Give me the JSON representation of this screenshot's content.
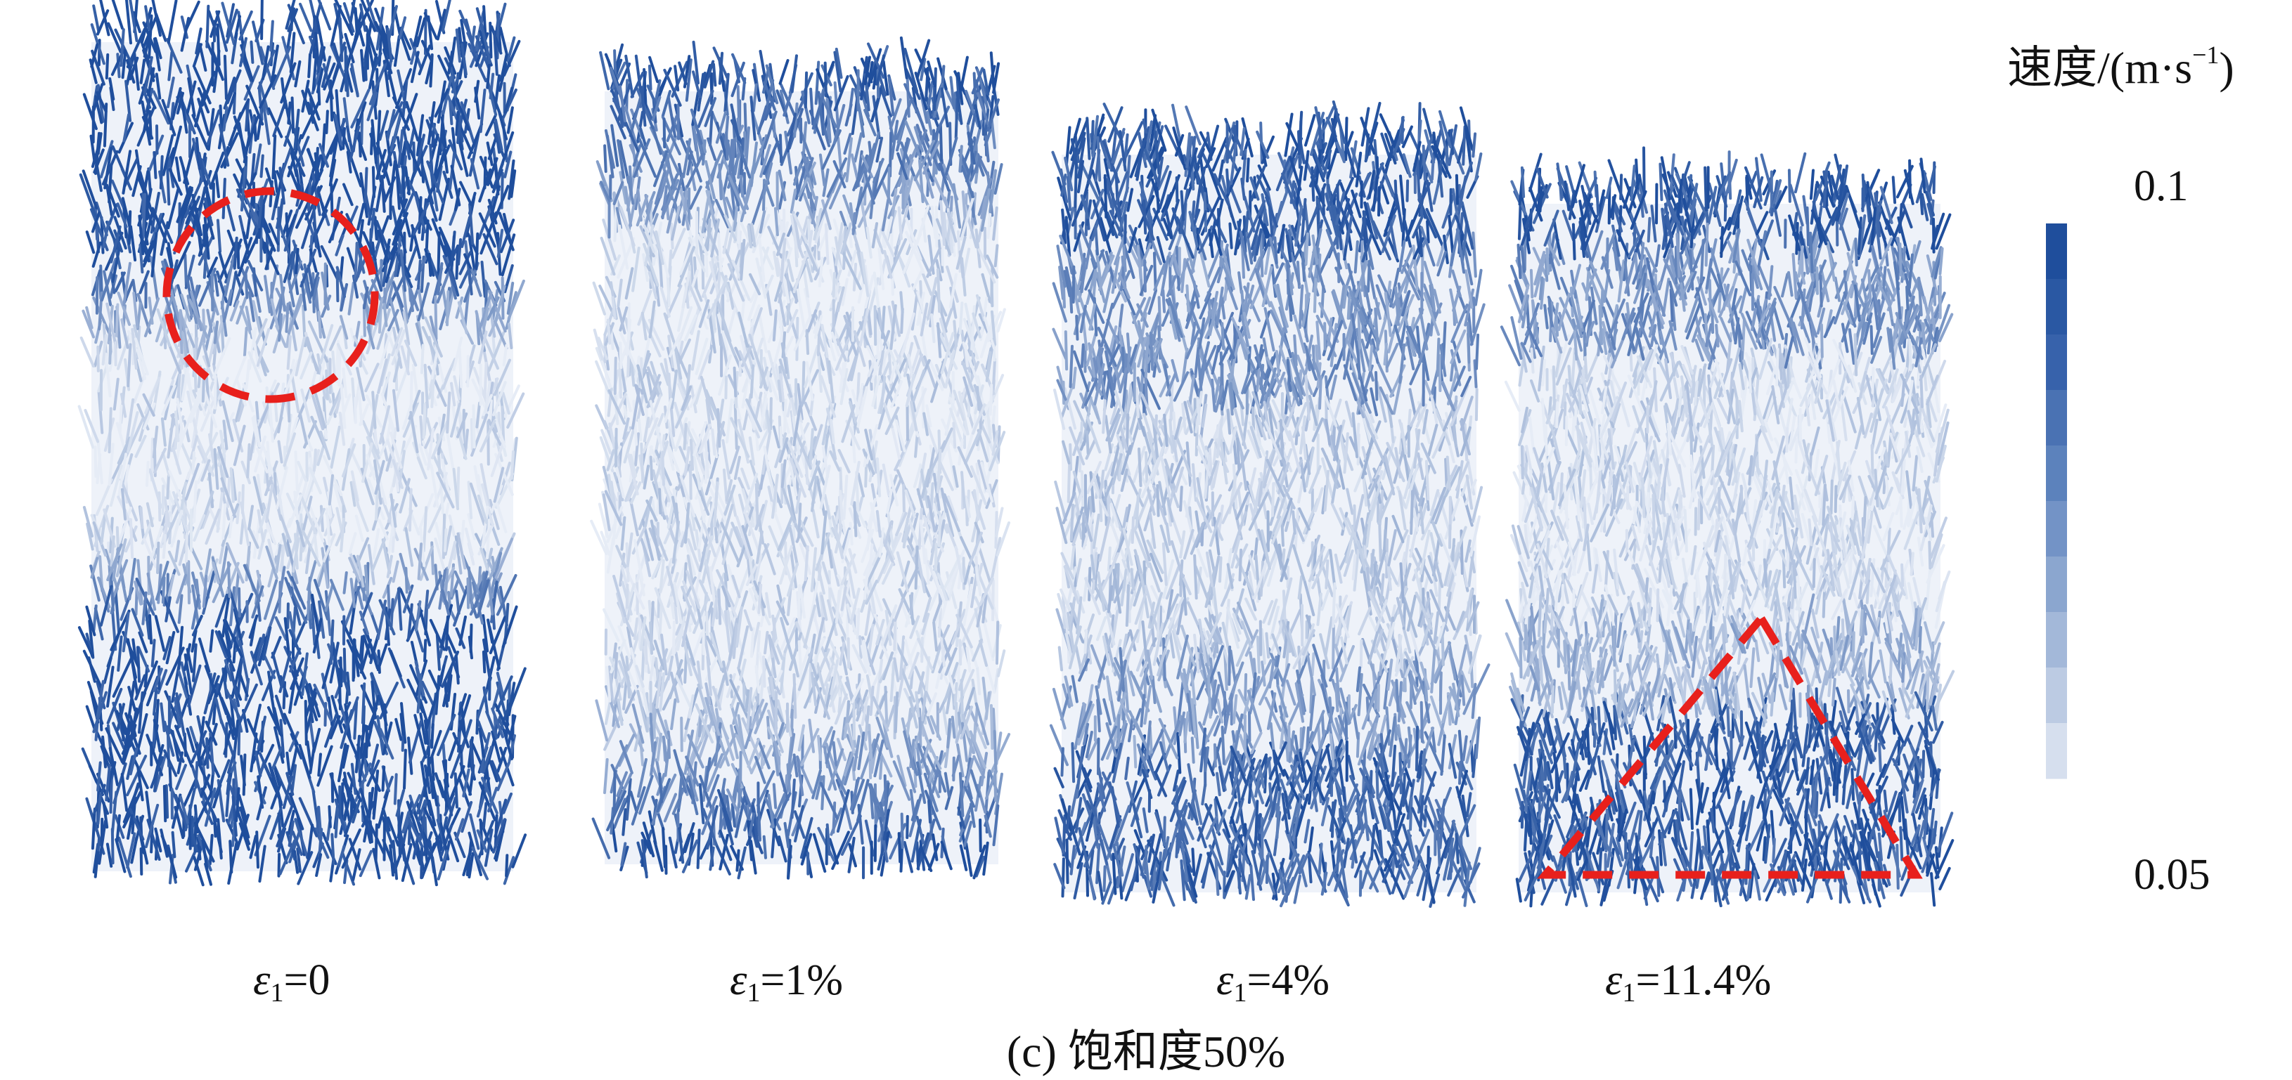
{
  "legend": {
    "title": "速度/(m·s",
    "title_sup": "−1",
    "title_close": ")",
    "max_label": "0.1",
    "min_label": "0.05",
    "steps": [
      "#1f4e9c",
      "#2a58a3",
      "#3762ab",
      "#4a72b3",
      "#5c82bc",
      "#7393c6",
      "#8ba6cf",
      "#a3b8d9",
      "#bccbe3",
      "#d6dfee"
    ]
  },
  "colors": {
    "dark": "#1f4e9c",
    "light": "#e6ecf6",
    "marker": "#e8201c"
  },
  "panels": [
    {
      "eps_symbol": "ε",
      "eps_sub": "1",
      "eps_value": "=0",
      "profile": "top-bottom-dark",
      "marker": "circle"
    },
    {
      "eps_symbol": "ε",
      "eps_sub": "1",
      "eps_value": "=1%",
      "profile": "light-body",
      "marker": "none"
    },
    {
      "eps_symbol": "ε",
      "eps_sub": "1",
      "eps_value": "=4%",
      "profile": "bands",
      "marker": "none"
    },
    {
      "eps_symbol": "ε",
      "eps_sub": "1",
      "eps_value": "=11.4%",
      "profile": "bottom-dark",
      "marker": "triangle"
    }
  ],
  "caption": "(c) 饱和度50%"
}
